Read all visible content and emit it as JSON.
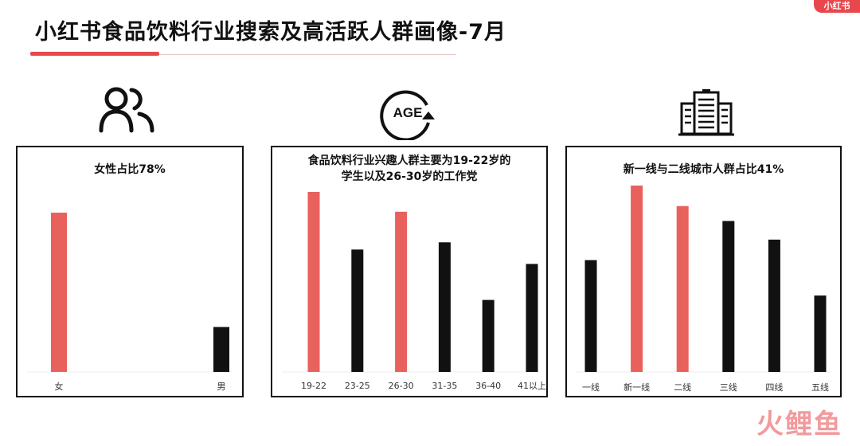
{
  "header": {
    "title": "小红书食品饮料行业搜索及高活跃人群画像-7月",
    "brand": "小红书",
    "accent_color": "#e8484c"
  },
  "icons": [
    "people-icon",
    "age-icon",
    "building-icon"
  ],
  "age_icon_label": "AGE",
  "watermark": "火鲤鱼",
  "colors": {
    "highlight": "#e8615c",
    "normal": "#111111"
  },
  "chart_data": [
    {
      "type": "bar",
      "title": "女性占比78%",
      "categories": [
        "女",
        "男"
      ],
      "values": [
        78,
        22
      ],
      "highlight": [
        true,
        false
      ]
    },
    {
      "type": "bar",
      "title": "食品饮料行业兴趣人群主要为19-22岁的学生以及26-30岁的工作党",
      "title_lines": [
        "食品饮料行业兴趣人群主要为19-22岁的",
        "学生以及26-30岁的工作党"
      ],
      "categories": [
        "19-22",
        "23-25",
        "26-30",
        "31-35",
        "36-40",
        "41以上"
      ],
      "values": [
        100,
        68,
        89,
        72,
        40,
        60
      ],
      "highlight": [
        true,
        false,
        true,
        false,
        false,
        false
      ]
    },
    {
      "type": "bar",
      "title": "新一线与二线城市人群占比41%",
      "categories": [
        "一线",
        "新一线",
        "二线",
        "三线",
        "四线",
        "五线"
      ],
      "values": [
        60,
        100,
        89,
        81,
        71,
        41
      ],
      "highlight": [
        false,
        true,
        true,
        false,
        false,
        false
      ]
    }
  ]
}
